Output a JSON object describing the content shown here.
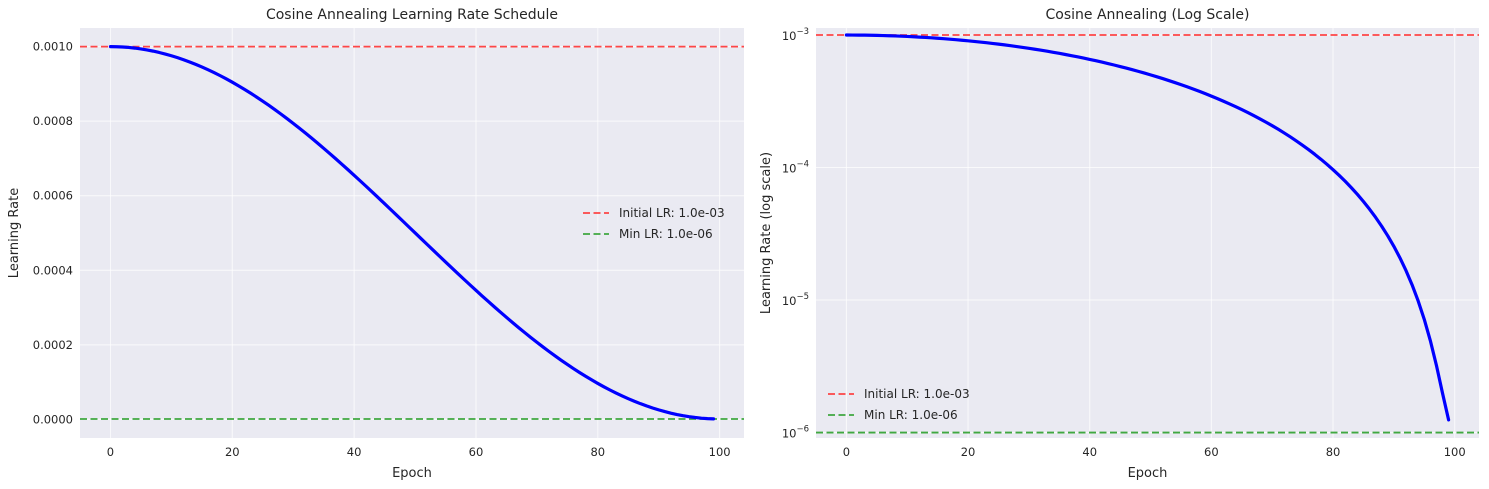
{
  "chart_data": [
    {
      "type": "line",
      "title": "Cosine Annealing Learning Rate Schedule",
      "xlabel": "Epoch",
      "ylabel": "Learning Rate",
      "xlim": [
        -5,
        104
      ],
      "ylim": [
        -5e-05,
        0.00105
      ],
      "yscale": "linear",
      "grid": true,
      "xticks": [
        0,
        20,
        40,
        60,
        80,
        100
      ],
      "xtick_labels": [
        "0",
        "20",
        "40",
        "60",
        "80",
        "100"
      ],
      "yticks": [
        0,
        0.0002,
        0.0004,
        0.0006,
        0.0008,
        0.001
      ],
      "ytick_labels": [
        "0.0000",
        "0.0002",
        "0.0004",
        "0.0006",
        "0.0008",
        "0.0010"
      ],
      "legend_position": "center-right",
      "series": [
        {
          "name": "",
          "color": "#0000ff",
          "formula": "cosine_annealing",
          "x_start": 0,
          "x_end": 99,
          "eta_max": 0.001,
          "eta_min": 1e-06,
          "period": 100
        }
      ],
      "reference_lines": [
        {
          "name": "Initial LR: 1.0e-03",
          "y": 0.001,
          "color": "#ff3333",
          "style": "dashed"
        },
        {
          "name": "Min LR: 1.0e-06",
          "y": 1e-06,
          "color": "#2ca02c",
          "style": "dashed"
        }
      ]
    },
    {
      "type": "line",
      "title": "Cosine Annealing (Log Scale)",
      "xlabel": "Epoch",
      "ylabel": "Learning Rate (log scale)",
      "xlim": [
        -5,
        104
      ],
      "ylim": [
        9.1e-07,
        0.00113
      ],
      "yscale": "log",
      "grid": true,
      "xticks": [
        0,
        20,
        40,
        60,
        80,
        100
      ],
      "xtick_labels": [
        "0",
        "20",
        "40",
        "60",
        "80",
        "100"
      ],
      "yticks": [
        1e-06,
        1e-05,
        0.0001,
        0.001
      ],
      "ytick_labels": [
        {
          "base": "10",
          "exp": "−6"
        },
        {
          "base": "10",
          "exp": "−5"
        },
        {
          "base": "10",
          "exp": "−4"
        },
        {
          "base": "10",
          "exp": "−3"
        }
      ],
      "legend_position": "lower-left",
      "series": [
        {
          "name": "",
          "color": "#0000ff",
          "formula": "cosine_annealing",
          "x_start": 0,
          "x_end": 99,
          "eta_max": 0.001,
          "eta_min": 1e-06,
          "period": 100
        }
      ],
      "reference_lines": [
        {
          "name": "Initial LR: 1.0e-03",
          "y": 0.001,
          "color": "#ff3333",
          "style": "dashed"
        },
        {
          "name": "Min LR: 1.0e-06",
          "y": 1e-06,
          "color": "#2ca02c",
          "style": "dashed"
        }
      ]
    }
  ]
}
